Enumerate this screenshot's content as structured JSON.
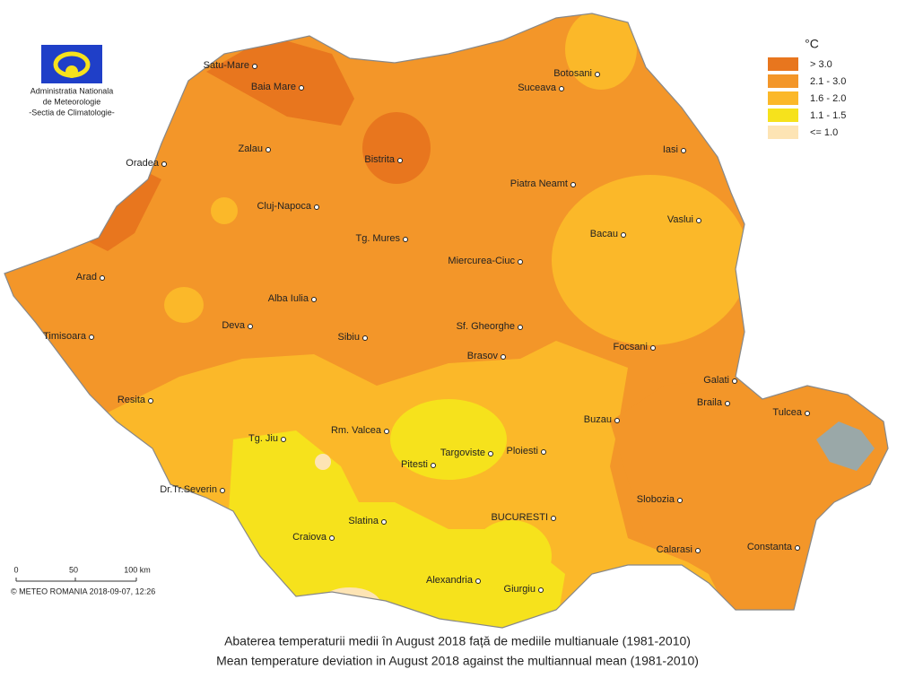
{
  "logo": {
    "lines": [
      "Administratia Nationala",
      "de Meteorologie",
      "-Sectia de Climatologie-"
    ]
  },
  "legend": {
    "title": "°C",
    "items": [
      {
        "label": "> 3.0",
        "color": "#e8761e"
      },
      {
        "label": "2.1 - 3.0",
        "color": "#f39629"
      },
      {
        "label": "1.6 - 2.0",
        "color": "#fbb829"
      },
      {
        "label": "1.1 - 1.5",
        "color": "#f6e21c"
      },
      {
        "label": "<= 1.0",
        "color": "#fde4b4"
      }
    ]
  },
  "cities": [
    "Satu-Mare",
    "Baia Mare",
    "Botosani",
    "Suceava",
    "Zalau",
    "Bistrita",
    "Iasi",
    "Oradea",
    "Piatra Neamt",
    "Cluj-Napoca",
    "Vaslui",
    "Bacau",
    "Tg. Mures",
    "Miercurea-Ciuc",
    "Arad",
    "Alba Iulia",
    "Deva",
    "Sf. Gheorghe",
    "Timisoara",
    "Sibiu",
    "Brasov",
    "Focsani",
    "Galati",
    "Braila",
    "Resita",
    "Tulcea",
    "Buzau",
    "Rm. Valcea",
    "Tg. Jiu",
    "Targoviste",
    "Ploiesti",
    "Pitesti",
    "Dr.Tr.Severin",
    "Slobozia",
    "Slatina",
    "BUCURESTI",
    "Craiova",
    "Calarasi",
    "Constanta",
    "Alexandria",
    "Giurgiu"
  ],
  "scale": {
    "labels": [
      "0",
      "50",
      "100 km"
    ]
  },
  "credit": "© METEO ROMANIA 2018-09-07, 12:26",
  "caption": [
    "Abaterea temperaturii medii în  August 2018  față de mediile multianuale (1981-2010)",
    "Mean temperature deviation in  August 2018  against the multiannual mean (1981-2010)"
  ]
}
